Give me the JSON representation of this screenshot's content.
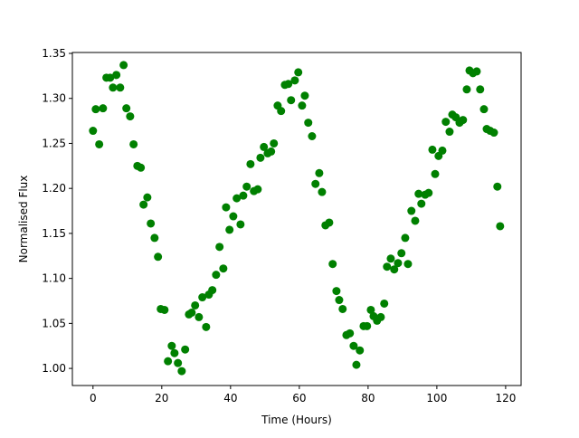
{
  "chart_data": {
    "type": "scatter",
    "xlabel": "Time (Hours)",
    "ylabel": "Normalised Flux",
    "series": [
      {
        "color": "#008000",
        "x": [
          0,
          0.8,
          1.8,
          2.9,
          3.9,
          5,
          5.8,
          6.8,
          7.9,
          8.9,
          9.7,
          10.8,
          11.8,
          12.9,
          13.9,
          14.7,
          15.8,
          16.8,
          17.9,
          18.9,
          19.7,
          20.8,
          21.8,
          22.9,
          23.7,
          24.7,
          25.8,
          26.8,
          27.9,
          28.7,
          29.7,
          30.8,
          31.8,
          32.9,
          33.7,
          34.7,
          35.8,
          36.8,
          37.9,
          38.7,
          39.7,
          40.8,
          41.8,
          42.9,
          43.7,
          44.7,
          45.8,
          46.8,
          47.9,
          48.7,
          49.7,
          50.8,
          51.8,
          52.6,
          53.7,
          54.7,
          55.8,
          56.8,
          57.6,
          58.7,
          59.7,
          60.8,
          61.6,
          62.6,
          63.7,
          64.7,
          65.8,
          66.6,
          67.6,
          68.7,
          69.7,
          70.8,
          71.6,
          72.6,
          73.7,
          74.7,
          75.8,
          76.6,
          77.6,
          78.7,
          79.7,
          80.8,
          81.6,
          82.6,
          83.7,
          84.7,
          85.5,
          86.6,
          87.6,
          88.7,
          89.7,
          90.8,
          91.6,
          92.6,
          93.7,
          94.7,
          95.5,
          96.6,
          97.6,
          98.7,
          99.5,
          100.5,
          101.6,
          102.6,
          103.7,
          104.5,
          105.5,
          106.6,
          107.6,
          108.7,
          109.5,
          110.5,
          111.6,
          112.6,
          113.7,
          114.5,
          115.5,
          116.6,
          117.6,
          118.4
        ],
        "values": [
          1.264,
          1.288,
          1.249,
          1.289,
          1.323,
          1.323,
          1.312,
          1.326,
          1.312,
          1.337,
          1.289,
          1.28,
          1.249,
          1.225,
          1.223,
          1.182,
          1.19,
          1.161,
          1.145,
          1.124,
          1.066,
          1.065,
          1.008,
          1.025,
          1.017,
          1.006,
          0.997,
          1.021,
          1.06,
          1.062,
          1.07,
          1.057,
          1.079,
          1.046,
          1.082,
          1.087,
          1.104,
          1.135,
          1.111,
          1.179,
          1.154,
          1.169,
          1.189,
          1.16,
          1.192,
          1.202,
          1.227,
          1.197,
          1.199,
          1.234,
          1.246,
          1.239,
          1.241,
          1.25,
          1.292,
          1.286,
          1.315,
          1.316,
          1.298,
          1.32,
          1.329,
          1.292,
          1.303,
          1.273,
          1.258,
          1.205,
          1.217,
          1.196,
          1.159,
          1.162,
          1.116,
          1.086,
          1.076,
          1.066,
          1.037,
          1.039,
          1.025,
          1.004,
          1.02,
          1.047,
          1.047,
          1.065,
          1.058,
          1.053,
          1.057,
          1.072,
          1.113,
          1.122,
          1.11,
          1.117,
          1.128,
          1.145,
          1.116,
          1.175,
          1.164,
          1.194,
          1.183,
          1.193,
          1.195,
          1.243,
          1.216,
          1.236,
          1.242,
          1.274,
          1.263,
          1.282,
          1.279,
          1.273,
          1.276,
          1.31,
          1.331,
          1.328,
          1.33,
          1.31,
          1.288,
          1.266,
          1.264,
          1.262,
          1.202,
          1.158
        ]
      }
    ],
    "xlim": [
      -6,
      124.5
    ],
    "ylim": [
      0.981,
      1.351
    ],
    "xticks": [
      0,
      20,
      40,
      60,
      80,
      100,
      120
    ],
    "yticks": [
      {
        "value": 1,
        "label": "1.00"
      },
      1.05,
      {
        "value": 1.1,
        "label": "1.10"
      },
      1.15,
      {
        "value": 1.2,
        "label": "1.20"
      },
      1.25,
      {
        "value": 1.3,
        "label": "1.30"
      },
      1.35
    ]
  }
}
